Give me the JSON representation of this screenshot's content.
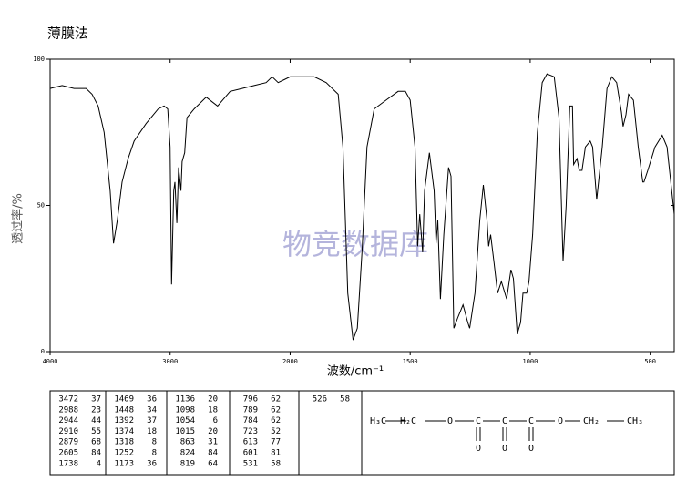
{
  "chart_data": {
    "type": "line",
    "title": "薄膜法",
    "watermark": "物竞数据库",
    "xlabel": "波数/cm⁻¹",
    "ylabel": "透过率/%",
    "xlim": [
      4000,
      400
    ],
    "xticks": [
      4000,
      3000,
      2000,
      1500,
      1000,
      500
    ],
    "ylim": [
      0,
      100
    ],
    "yticks": [
      0,
      50,
      100
    ],
    "x": [
      4000,
      3900,
      3800,
      3700,
      3650,
      3600,
      3550,
      3500,
      3472,
      3440,
      3400,
      3350,
      3300,
      3200,
      3100,
      3050,
      3020,
      3000,
      2988,
      2970,
      2960,
      2944,
      2930,
      2910,
      2900,
      2879,
      2860,
      2800,
      2700,
      2605,
      2500,
      2400,
      2300,
      2200,
      2150,
      2100,
      2050,
      2000,
      1900,
      1850,
      1800,
      1780,
      1760,
      1738,
      1720,
      1700,
      1680,
      1650,
      1600,
      1550,
      1520,
      1500,
      1480,
      1469,
      1460,
      1448,
      1440,
      1420,
      1400,
      1392,
      1385,
      1374,
      1360,
      1340,
      1330,
      1318,
      1300,
      1280,
      1260,
      1252,
      1230,
      1210,
      1195,
      1180,
      1173,
      1165,
      1150,
      1136,
      1120,
      1098,
      1080,
      1070,
      1054,
      1040,
      1030,
      1015,
      1005,
      990,
      970,
      950,
      930,
      900,
      880,
      863,
      850,
      835,
      824,
      819,
      805,
      796,
      789,
      784,
      770,
      750,
      740,
      723,
      700,
      680,
      660,
      640,
      620,
      613,
      601,
      590,
      570,
      550,
      531,
      526,
      510,
      480,
      450,
      430,
      400
    ],
    "series": [
      {
        "name": "透过率",
        "color": "#000000",
        "values": [
          90,
          91,
          90,
          90,
          88,
          84,
          75,
          55,
          37,
          45,
          58,
          66,
          72,
          78,
          83,
          84,
          83,
          70,
          23,
          55,
          58,
          44,
          63,
          55,
          65,
          68,
          80,
          83,
          87,
          84,
          89,
          90,
          91,
          92,
          94,
          92,
          93,
          94,
          94,
          92,
          88,
          70,
          20,
          4,
          8,
          35,
          70,
          83,
          86,
          89,
          89,
          86,
          70,
          36,
          47,
          34,
          55,
          68,
          55,
          37,
          45,
          18,
          40,
          63,
          60,
          8,
          12,
          16,
          10,
          8,
          20,
          45,
          57,
          45,
          36,
          40,
          30,
          20,
          24,
          18,
          28,
          25,
          6,
          10,
          20,
          20,
          24,
          40,
          75,
          92,
          95,
          94,
          80,
          31,
          50,
          84,
          84,
          64,
          66,
          62,
          62,
          62,
          70,
          72,
          70,
          52,
          70,
          90,
          94,
          92,
          82,
          77,
          81,
          88,
          86,
          70,
          58,
          58,
          62,
          70,
          74,
          70,
          47
        ]
      }
    ]
  },
  "peaks": [
    [
      3472,
      37
    ],
    [
      2988,
      23
    ],
    [
      2944,
      44
    ],
    [
      2910,
      55
    ],
    [
      2879,
      68
    ],
    [
      2605,
      84
    ],
    [
      1738,
      4
    ],
    [
      1469,
      36
    ],
    [
      1448,
      34
    ],
    [
      1392,
      37
    ],
    [
      1374,
      18
    ],
    [
      1318,
      8
    ],
    [
      1252,
      8
    ],
    [
      1173,
      36
    ],
    [
      1136,
      20
    ],
    [
      1098,
      18
    ],
    [
      1054,
      6
    ],
    [
      1015,
      20
    ],
    [
      863,
      31
    ],
    [
      824,
      84
    ],
    [
      819,
      64
    ],
    [
      796,
      62
    ],
    [
      789,
      62
    ],
    [
      784,
      62
    ],
    [
      723,
      52
    ],
    [
      613,
      77
    ],
    [
      601,
      81
    ],
    [
      531,
      58
    ],
    [
      526,
      58
    ]
  ],
  "structure": {
    "atoms": [
      "H₃C",
      "H₂C",
      "O",
      "C",
      "C",
      "C",
      "O",
      "CH₂",
      "CH₃"
    ],
    "carbonyl_oxygens": [
      "O",
      "O",
      "O"
    ]
  }
}
